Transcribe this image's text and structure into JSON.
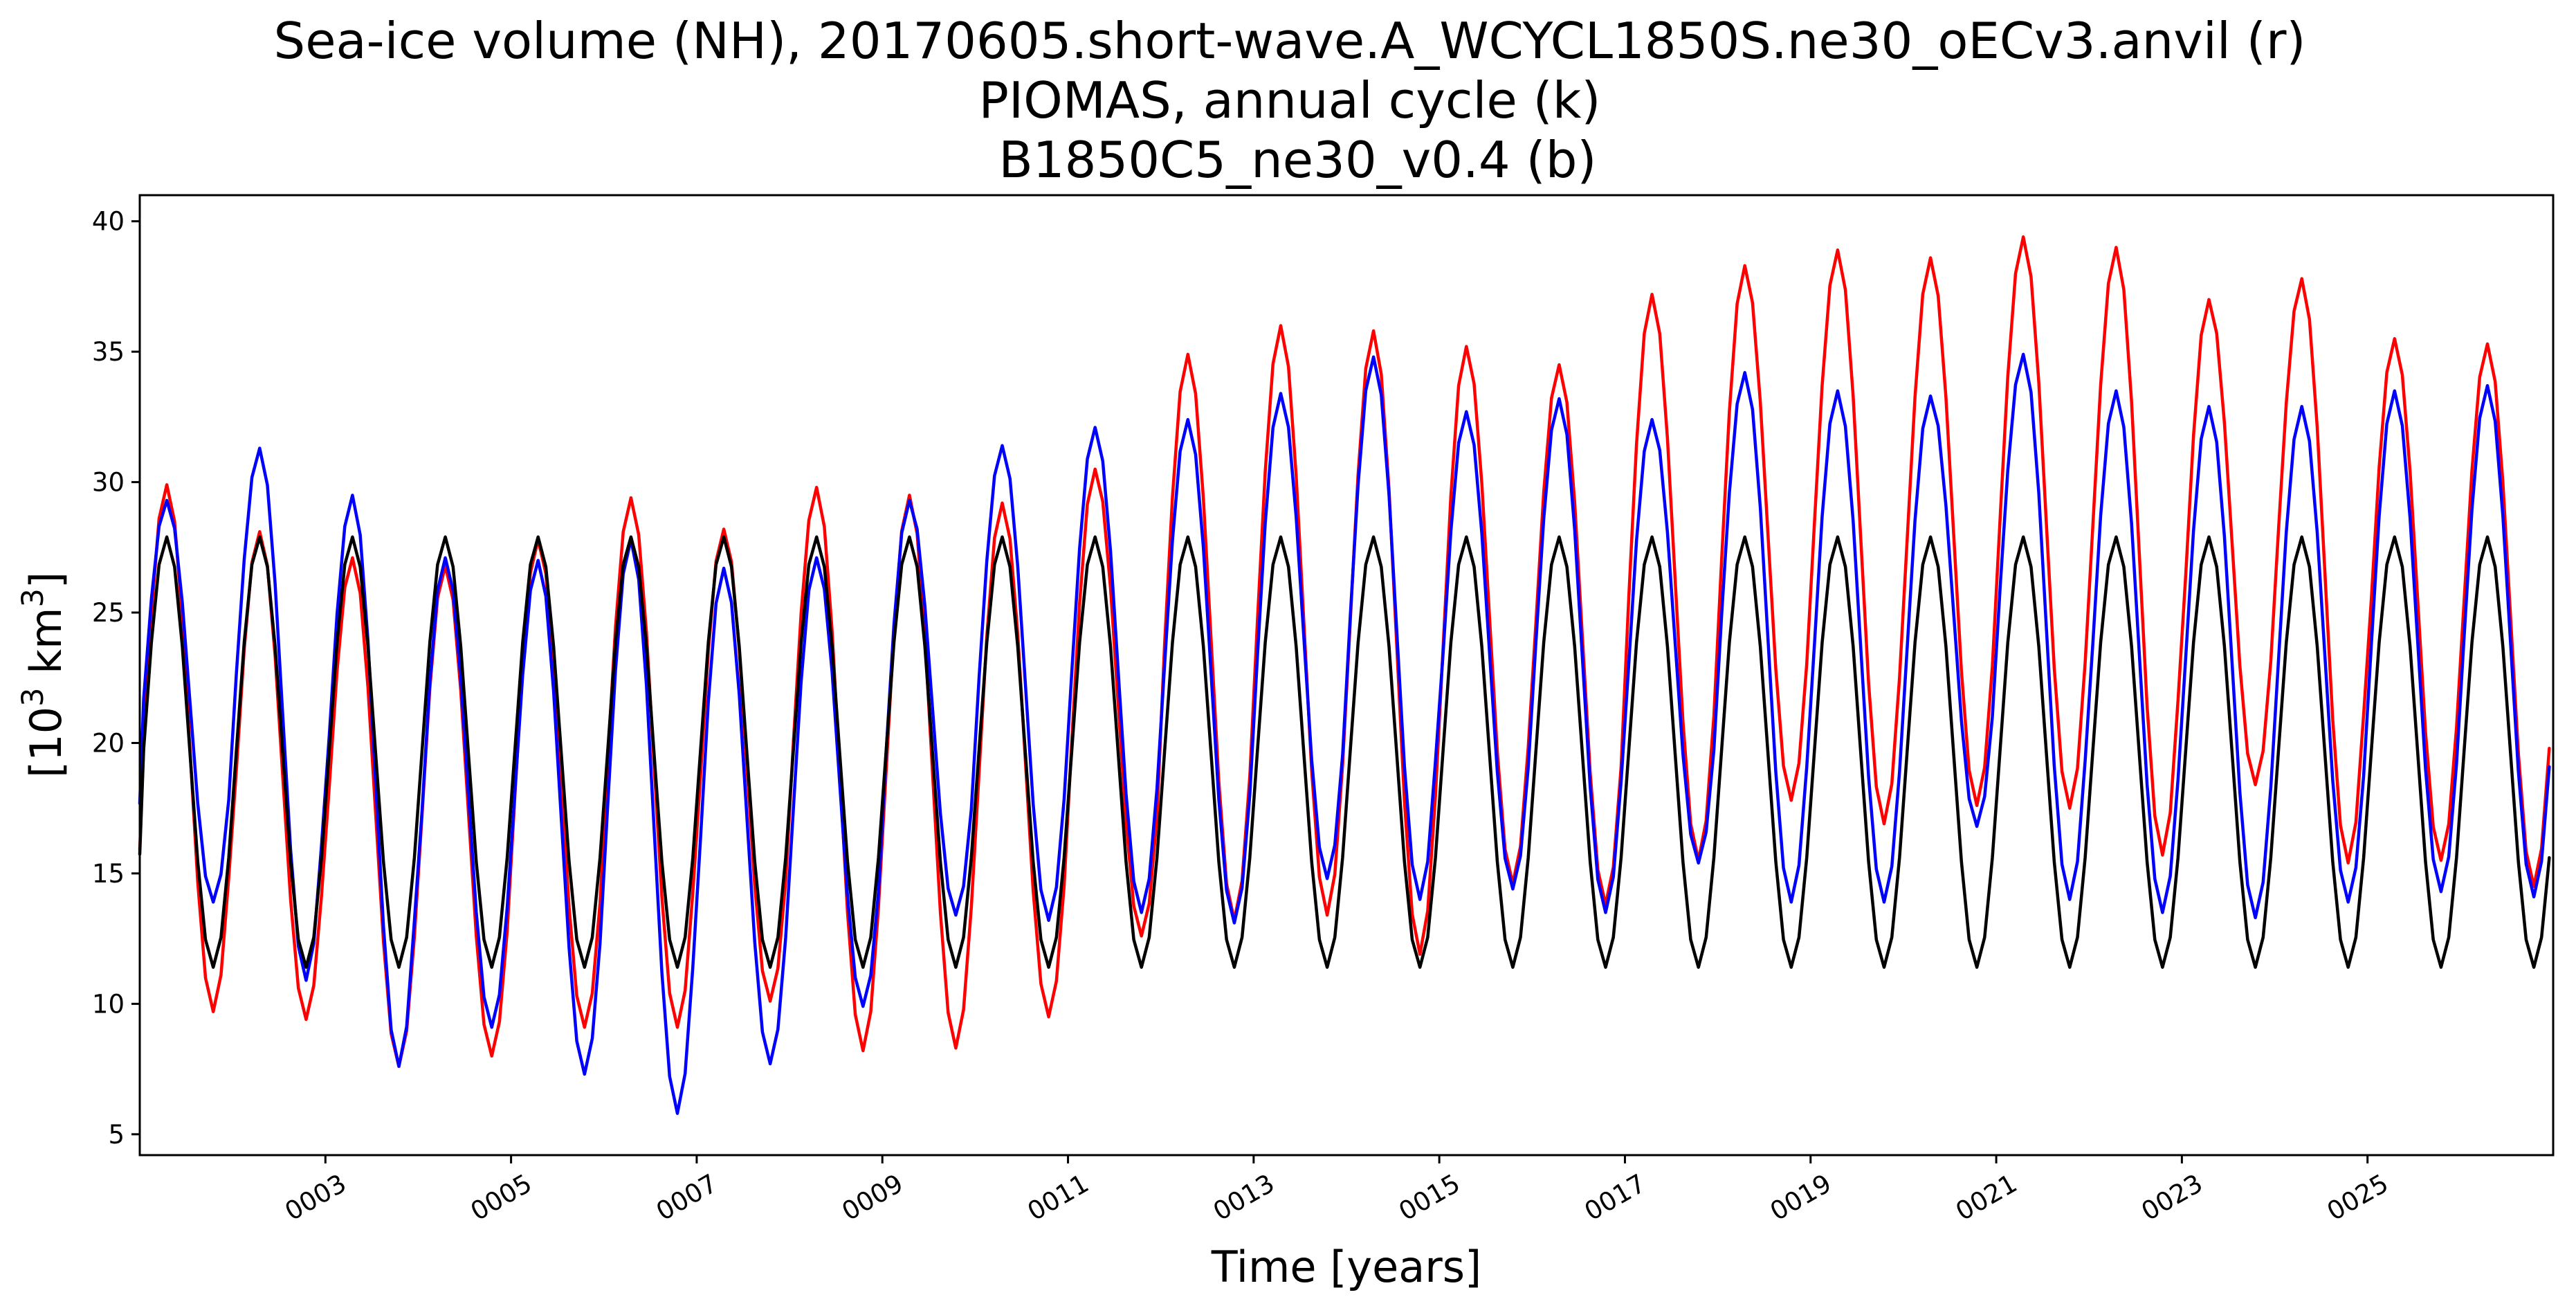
{
  "chart_data": {
    "type": "line",
    "title_lines": [
      "Sea-ice volume (NH), 20170605.short-wave.A_WCYCL1850S.ne30_oECv3.anvil (r)",
      "PIOMAS, annual cycle (k)",
      " B1850C5_ne30_v0.4 (b)"
    ],
    "xlabel": "Time [years]",
    "ylabel": "[10",
    "ylabel_superscript": "3",
    "ylabel_tail": " km",
    "ylabel_tail_superscript": "3",
    "ylabel_end": "]",
    "xlim": [
      1.0,
      27.0
    ],
    "ylim": [
      4.2,
      41.0
    ],
    "grid": false,
    "legend": "none",
    "yticks": [
      5,
      10,
      15,
      20,
      25,
      30,
      35,
      40
    ],
    "xticks": [
      {
        "value": 3,
        "label": "0003"
      },
      {
        "value": 5,
        "label": "0005"
      },
      {
        "value": 7,
        "label": "0007"
      },
      {
        "value": 9,
        "label": "0009"
      },
      {
        "value": 11,
        "label": "0011"
      },
      {
        "value": 13,
        "label": "0013"
      },
      {
        "value": 15,
        "label": "0015"
      },
      {
        "value": 17,
        "label": "0017"
      },
      {
        "value": 19,
        "label": "0019"
      },
      {
        "value": 21,
        "label": "0021"
      },
      {
        "value": 23,
        "label": "0023"
      },
      {
        "value": 25,
        "label": "0025"
      }
    ],
    "series": [
      {
        "color": "#ff0000",
        "annual_cycles": [
          {
            "year": 1,
            "max": 29.9,
            "min": 9.7
          },
          {
            "year": 2,
            "max": 28.1,
            "min": 9.4
          },
          {
            "year": 3,
            "max": 27.1,
            "min": 7.6
          },
          {
            "year": 4,
            "max": 26.8,
            "min": 8.0
          },
          {
            "year": 5,
            "max": 27.8,
            "min": 9.1
          },
          {
            "year": 6,
            "max": 29.4,
            "min": 9.1
          },
          {
            "year": 7,
            "max": 28.2,
            "min": 10.1
          },
          {
            "year": 8,
            "max": 29.8,
            "min": 8.2
          },
          {
            "year": 9,
            "max": 29.5,
            "min": 8.3
          },
          {
            "year": 10,
            "max": 29.2,
            "min": 9.5
          },
          {
            "year": 11,
            "max": 30.5,
            "min": 12.6
          },
          {
            "year": 12,
            "max": 34.9,
            "min": 13.2
          },
          {
            "year": 13,
            "max": 36.0,
            "min": 13.4
          },
          {
            "year": 14,
            "max": 35.8,
            "min": 11.9
          },
          {
            "year": 15,
            "max": 35.2,
            "min": 14.6
          },
          {
            "year": 16,
            "max": 34.5,
            "min": 13.8
          },
          {
            "year": 17,
            "max": 37.2,
            "min": 15.5
          },
          {
            "year": 18,
            "max": 38.3,
            "min": 17.8
          },
          {
            "year": 19,
            "max": 38.9,
            "min": 16.9
          },
          {
            "year": 20,
            "max": 38.6,
            "min": 17.6
          },
          {
            "year": 21,
            "max": 39.4,
            "min": 17.5
          },
          {
            "year": 22,
            "max": 39.0,
            "min": 15.7
          },
          {
            "year": 23,
            "max": 37.0,
            "min": 18.4
          },
          {
            "year": 24,
            "max": 37.8,
            "min": 15.4
          },
          {
            "year": 25,
            "max": 35.5,
            "min": 15.5
          },
          {
            "year": 26,
            "max": 35.3,
            "min": 14.5
          }
        ]
      },
      {
        "color": "#0000ff",
        "annual_cycles": [
          {
            "year": 1,
            "max": 29.3,
            "min": 13.9
          },
          {
            "year": 2,
            "max": 31.3,
            "min": 10.9
          },
          {
            "year": 3,
            "max": 29.5,
            "min": 7.6
          },
          {
            "year": 4,
            "max": 27.1,
            "min": 9.1
          },
          {
            "year": 5,
            "max": 27.0,
            "min": 7.3
          },
          {
            "year": 6,
            "max": 27.8,
            "min": 5.8
          },
          {
            "year": 7,
            "max": 26.7,
            "min": 7.7
          },
          {
            "year": 8,
            "max": 27.1,
            "min": 9.9
          },
          {
            "year": 9,
            "max": 29.3,
            "min": 13.4
          },
          {
            "year": 10,
            "max": 31.4,
            "min": 13.2
          },
          {
            "year": 11,
            "max": 32.1,
            "min": 13.5
          },
          {
            "year": 12,
            "max": 32.4,
            "min": 13.1
          },
          {
            "year": 13,
            "max": 33.4,
            "min": 14.8
          },
          {
            "year": 14,
            "max": 34.8,
            "min": 14.0
          },
          {
            "year": 15,
            "max": 32.7,
            "min": 14.4
          },
          {
            "year": 16,
            "max": 33.2,
            "min": 13.5
          },
          {
            "year": 17,
            "max": 32.4,
            "min": 15.4
          },
          {
            "year": 18,
            "max": 34.2,
            "min": 13.9
          },
          {
            "year": 19,
            "max": 33.5,
            "min": 13.9
          },
          {
            "year": 20,
            "max": 33.3,
            "min": 16.8
          },
          {
            "year": 21,
            "max": 34.9,
            "min": 14.0
          },
          {
            "year": 22,
            "max": 33.5,
            "min": 13.5
          },
          {
            "year": 23,
            "max": 32.9,
            "min": 13.3
          },
          {
            "year": 24,
            "max": 32.9,
            "min": 13.9
          },
          {
            "year": 25,
            "max": 33.5,
            "min": 14.3
          },
          {
            "year": 26,
            "max": 33.7,
            "min": 14.1
          }
        ]
      },
      {
        "color": "#000000",
        "annual_cycle_repeated": {
          "max": 27.9,
          "min": 11.4
        }
      }
    ]
  }
}
